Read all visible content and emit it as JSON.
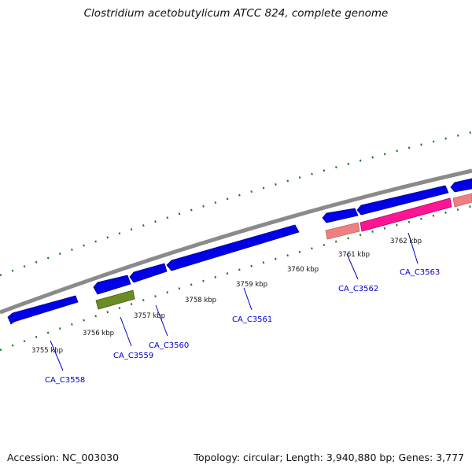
{
  "title": "Clostridium acetobutylicum ATCC 824, complete genome",
  "footer": {
    "accession_label": "Accession:",
    "accession": "NC_003030",
    "topology_label": "Topology:",
    "topology": "circular",
    "length_label": "Length:",
    "length": "3,940,880 bp",
    "genes_label": "Genes:",
    "genes": "3,777"
  },
  "kbp_labels": [
    "3755 kbp",
    "3756 kbp",
    "3757 kbp",
    "3758 kbp",
    "3759 kbp",
    "3760 kbp",
    "3761 kbp",
    "3762 kbp"
  ],
  "gene_labels": [
    "CA_C3558",
    "CA_C3559",
    "CA_C3560",
    "CA_C3561",
    "CA_C3562",
    "CA_C3563"
  ],
  "colors": {
    "backbone": "#8a8a8a",
    "gene_forward": "#0000e6",
    "gene_highlight": "#ff1493",
    "gene_green": "#6b8e23",
    "gene_light": "#f08080",
    "ticks": "#1e7a1e",
    "gene_label": "#0000cc",
    "kbp_label": "#111111"
  }
}
